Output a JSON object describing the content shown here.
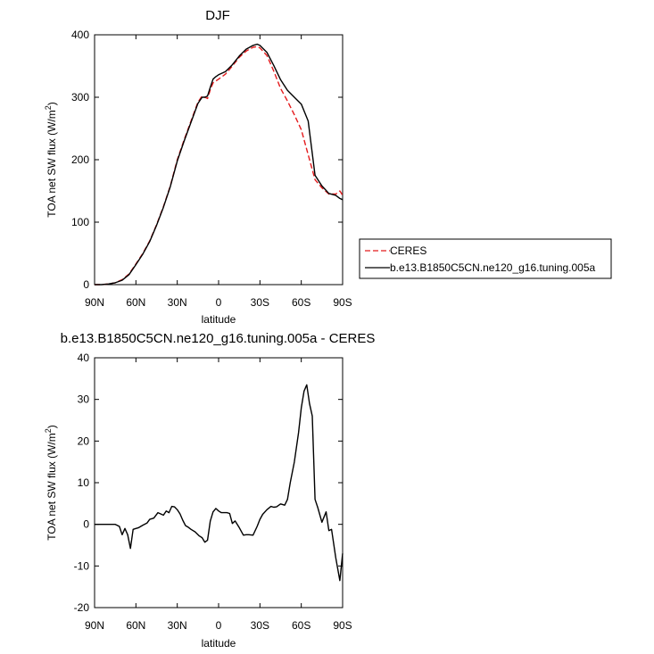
{
  "chart_data": [
    {
      "type": "line",
      "title": "DJF",
      "xlabel": "latitude",
      "ylabel": "TOA net SW flux (W/m",
      "ylabel_sup": "2",
      "ylabel_end": ")",
      "xlim": [
        90,
        -90
      ],
      "ylim": [
        0,
        400
      ],
      "xticks": [
        90,
        60,
        30,
        0,
        -30,
        -60,
        -90
      ],
      "xtick_labels": [
        "90N",
        "60N",
        "30N",
        "0",
        "30S",
        "60S",
        "90S"
      ],
      "yticks": [
        0,
        100,
        200,
        300,
        400
      ],
      "ytick_labels": [
        "0",
        "100",
        "200",
        "300",
        "400"
      ],
      "legend": "right-outside",
      "series": [
        {
          "name": "CERES",
          "color": "#e41a1c",
          "dash": "dashed",
          "x": [
            90,
            85,
            80,
            75,
            70,
            65,
            60,
            55,
            50,
            45,
            40,
            35,
            30,
            25,
            20,
            15,
            12,
            10,
            8,
            6,
            4,
            2,
            0,
            -5,
            -10,
            -15,
            -20,
            -25,
            -28,
            -30,
            -35,
            -40,
            -45,
            -50,
            -55,
            -60,
            -65,
            -70,
            -75,
            -80,
            -85,
            -88,
            -90
          ],
          "y": [
            0,
            0,
            1,
            3,
            8,
            17,
            33,
            50,
            70,
            96,
            125,
            158,
            200,
            232,
            262,
            292,
            302,
            300,
            298,
            312,
            323,
            326,
            329,
            337,
            350,
            364,
            374,
            380,
            381,
            379,
            367,
            342,
            314,
            294,
            272,
            248,
            208,
            168,
            155,
            145,
            145,
            150,
            143
          ]
        },
        {
          "name": "b.e13.B1850C5CN.ne120_g16.tuning.005a",
          "color": "#000000",
          "dash": "solid",
          "x": [
            90,
            85,
            80,
            75,
            70,
            65,
            60,
            55,
            50,
            45,
            40,
            35,
            30,
            25,
            20,
            15,
            12,
            10,
            8,
            6,
            4,
            2,
            0,
            -5,
            -10,
            -15,
            -20,
            -25,
            -28,
            -30,
            -35,
            -40,
            -45,
            -50,
            -55,
            -60,
            -65,
            -70,
            -75,
            -80,
            -85,
            -88,
            -90
          ],
          "y": [
            0,
            0,
            1,
            3,
            7,
            16,
            32,
            49,
            69,
            95,
            124,
            157,
            198,
            230,
            260,
            290,
            300,
            300,
            302,
            316,
            329,
            333,
            336,
            341,
            352,
            366,
            377,
            383,
            385,
            383,
            372,
            351,
            328,
            311,
            300,
            289,
            262,
            175,
            158,
            146,
            143,
            138,
            136
          ]
        }
      ]
    },
    {
      "type": "line",
      "title": "b.e13.B1850C5CN.ne120_g16.tuning.005a - CERES",
      "xlabel": "latitude",
      "ylabel": "TOA net SW flux (W/m",
      "ylabel_sup": "2",
      "ylabel_end": ")",
      "xlim": [
        90,
        -90
      ],
      "ylim": [
        -20,
        40
      ],
      "xticks": [
        90,
        60,
        30,
        0,
        -30,
        -60,
        -90
      ],
      "xtick_labels": [
        "90N",
        "60N",
        "30N",
        "0",
        "30S",
        "60S",
        "90S"
      ],
      "yticks": [
        -20,
        -10,
        0,
        10,
        20,
        30,
        40
      ],
      "ytick_labels": [
        "-20",
        "-10",
        "0",
        "10",
        "20",
        "30",
        "40"
      ],
      "series": [
        {
          "color": "#000000",
          "dash": "solid",
          "x": [
            90,
            85,
            80,
            75,
            72,
            70,
            68,
            66,
            64,
            62,
            60,
            58,
            55,
            52,
            50,
            47,
            44,
            42,
            40,
            38,
            36,
            34,
            32,
            30,
            28,
            26,
            24,
            22,
            20,
            17,
            14,
            12,
            10,
            8,
            6,
            4,
            2,
            0,
            -2,
            -4,
            -6,
            -8,
            -10,
            -12,
            -15,
            -18,
            -20,
            -22,
            -25,
            -28,
            -30,
            -32,
            -35,
            -38,
            -40,
            -42,
            -45,
            -48,
            -50,
            -52,
            -55,
            -58,
            -60,
            -62,
            -64,
            -66,
            -68,
            -70,
            -72,
            -75,
            -78,
            -80,
            -82,
            -85,
            -88,
            -90
          ],
          "y": [
            0,
            0,
            0,
            0,
            -0.5,
            -2.5,
            -1.0,
            -2.5,
            -5.8,
            -1.2,
            -1.0,
            -0.8,
            -0.2,
            0.3,
            1.2,
            1.5,
            2.8,
            2.5,
            2.2,
            3.2,
            2.8,
            4.3,
            4.2,
            3.5,
            2.5,
            1.0,
            -0.3,
            -0.7,
            -1.2,
            -1.8,
            -2.8,
            -3.2,
            -4.3,
            -3.8,
            0.8,
            3.0,
            3.8,
            3.2,
            2.8,
            2.8,
            2.8,
            2.6,
            0.2,
            0.8,
            -0.8,
            -2.6,
            -2.5,
            -2.5,
            -2.6,
            -0.5,
            1.2,
            2.4,
            3.5,
            4.3,
            4.1,
            4.2,
            4.9,
            4.6,
            6.0,
            10,
            15,
            22,
            28,
            32,
            33.5,
            29,
            26,
            6.0,
            4.0,
            0.5,
            3.0,
            -1.5,
            -1.2,
            -8,
            -13.5,
            -7
          ]
        }
      ]
    }
  ]
}
